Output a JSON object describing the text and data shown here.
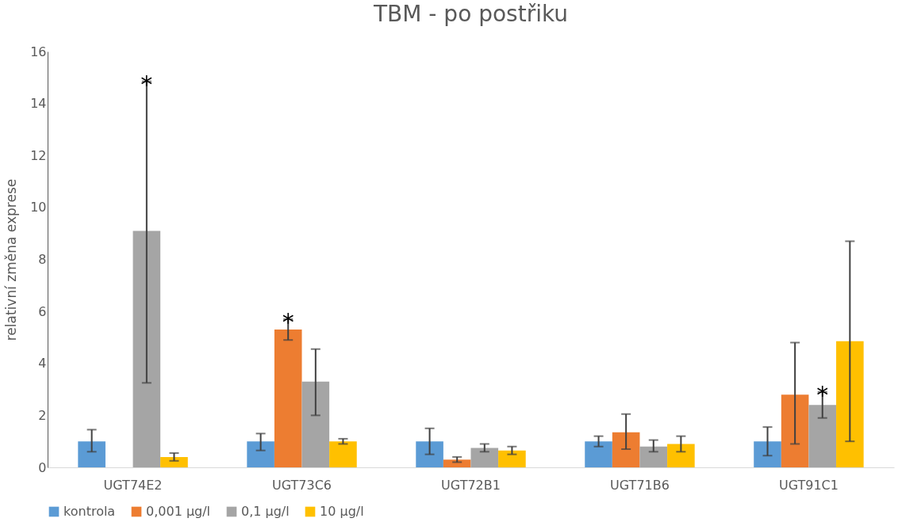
{
  "chart_data": {
    "type": "bar",
    "title": "TBM - po postřiku",
    "ylabel": "relativní změna exprese",
    "categories": [
      "UGT74E2",
      "UGT73C6",
      "UGT72B1",
      "UGT71B6",
      "UGT91C1"
    ],
    "series": [
      {
        "name": "kontrola",
        "color": "#5b9bd5",
        "values": [
          1.0,
          1.0,
          1.0,
          1.0,
          1.0
        ],
        "errors": [
          [
            0.6,
            1.45
          ],
          [
            0.65,
            1.3
          ],
          [
            0.5,
            1.5
          ],
          [
            0.8,
            1.2
          ],
          [
            0.45,
            1.55
          ]
        ]
      },
      {
        "name": "0,001 µg/l",
        "color": "#ed7d31",
        "values": [
          null,
          5.3,
          0.3,
          1.35,
          2.8
        ],
        "errors": [
          null,
          [
            4.9,
            5.7
          ],
          [
            0.2,
            0.4
          ],
          [
            0.7,
            2.05
          ],
          [
            0.9,
            4.8
          ]
        ]
      },
      {
        "name": "0,1 µg/l",
        "color": "#a5a5a5",
        "values": [
          9.1,
          3.3,
          0.75,
          0.8,
          2.4
        ],
        "errors": [
          [
            3.25,
            14.85
          ],
          [
            2.0,
            4.55
          ],
          [
            0.6,
            0.9
          ],
          [
            0.6,
            1.05
          ],
          [
            1.9,
            2.9
          ]
        ]
      },
      {
        "name": "10 µg/l",
        "color": "#ffc000",
        "values": [
          0.4,
          1.0,
          0.65,
          0.9,
          4.85
        ],
        "errors": [
          [
            0.25,
            0.55
          ],
          [
            0.9,
            1.1
          ],
          [
            0.5,
            0.8
          ],
          [
            0.6,
            1.2
          ],
          [
            1.0,
            8.7
          ]
        ]
      }
    ],
    "ylim": [
      0,
      16
    ],
    "yticks": [
      0,
      2,
      4,
      6,
      8,
      10,
      12,
      14,
      16
    ],
    "grid": false,
    "legend": "bottom",
    "annotations": [
      "*",
      {
        "text": "*",
        "x": "UGT73C6",
        "y": 5.3
      },
      {
        "text": "*",
        "x": "UGT91C1",
        "y": 2.4
      }
    ]
  }
}
